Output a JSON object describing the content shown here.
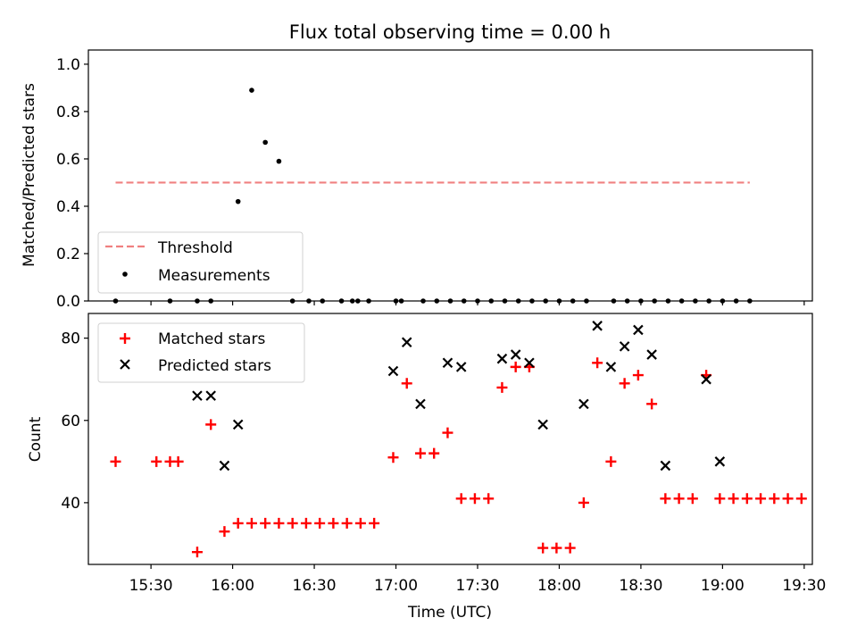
{
  "chart_data": [
    {
      "type": "scatter",
      "title": "Flux total observing time = 0.00 h",
      "xlabel": "",
      "ylabel": "Matched/Predicted stars",
      "xlim": [
        907,
        1173
      ],
      "ylim": [
        0,
        1.06
      ],
      "yticks": [
        0.0,
        0.2,
        0.4,
        0.6,
        0.8,
        1.0
      ],
      "ytick_labels": [
        "0.0",
        "0.2",
        "0.4",
        "0.6",
        "0.8",
        "1.0"
      ],
      "threshold": {
        "name": "Threshold",
        "value": 0.5,
        "x_range": [
          917,
          1150
        ],
        "color": "#f08080"
      },
      "legend": [
        "Threshold",
        "Measurements"
      ],
      "series": [
        {
          "name": "Measurements",
          "color": "#000000",
          "x": [
            917,
            937,
            947,
            952,
            962,
            967,
            972,
            977,
            982,
            988,
            993,
            1000,
            1004,
            1006,
            1010,
            1020,
            1022,
            1030,
            1035,
            1040,
            1045,
            1050,
            1055,
            1060,
            1065,
            1070,
            1075,
            1080,
            1085,
            1090,
            1100,
            1105,
            1110,
            1115,
            1120,
            1125,
            1130,
            1135,
            1140,
            1145,
            1150
          ],
          "y": [
            0.0,
            0.0,
            0.0,
            0.0,
            0.42,
            0.89,
            0.67,
            0.59,
            0.0,
            0.0,
            0.0,
            0.0,
            0.0,
            0.0,
            0.0,
            0.0,
            0.0,
            0.0,
            0.0,
            0.0,
            0.0,
            0.0,
            0.0,
            0.0,
            0.0,
            0.0,
            0.0,
            0.0,
            0.0,
            0.0,
            0.0,
            0.0,
            0.0,
            0.0,
            0.0,
            0.0,
            0.0,
            0.0,
            0.0,
            0.0,
            0.0
          ]
        }
      ]
    },
    {
      "type": "scatter",
      "title": "",
      "xlabel": "Time (UTC)",
      "ylabel": "Count",
      "xlim": [
        907,
        1173
      ],
      "ylim": [
        25,
        86
      ],
      "yticks": [
        40,
        60,
        80
      ],
      "ytick_labels": [
        "40",
        "60",
        "80"
      ],
      "xticks": [
        930,
        960,
        990,
        1020,
        1050,
        1080,
        1110,
        1140,
        1170
      ],
      "xtick_labels": [
        "15:30",
        "16:00",
        "16:30",
        "17:00",
        "17:30",
        "18:00",
        "18:30",
        "19:00",
        "19:30"
      ],
      "legend": [
        "Matched stars",
        "Predicted stars"
      ],
      "series": [
        {
          "name": "Matched stars",
          "color": "#ff0000",
          "x": [
            917,
            932,
            937,
            940,
            947,
            952,
            957,
            962,
            967,
            972,
            977,
            982,
            987,
            992,
            997,
            1002,
            1007,
            1012,
            1019,
            1024,
            1029,
            1034,
            1039,
            1044,
            1049,
            1054,
            1059,
            1064,
            1069,
            1074,
            1079,
            1084,
            1089,
            1094,
            1099,
            1104,
            1109,
            1114,
            1119,
            1124,
            1129,
            1134,
            1139,
            1144,
            1149,
            1154,
            1159,
            1164,
            1169
          ],
          "y": [
            50,
            50,
            50,
            50,
            28,
            59,
            33,
            35,
            35,
            35,
            35,
            35,
            35,
            35,
            35,
            35,
            35,
            35,
            51,
            69,
            52,
            52,
            57,
            41,
            41,
            41,
            68,
            73,
            73,
            29,
            29,
            29,
            40,
            74,
            50,
            69,
            71,
            64,
            41,
            41,
            41,
            71,
            41,
            41,
            41,
            41,
            41,
            41,
            41
          ]
        },
        {
          "name": "Predicted stars",
          "color": "#000000",
          "x": [
            947,
            952,
            957,
            962,
            1019,
            1024,
            1029,
            1039,
            1044,
            1059,
            1064,
            1069,
            1074,
            1089,
            1094,
            1099,
            1104,
            1109,
            1114,
            1119,
            1134,
            1139
          ],
          "y": [
            66,
            66,
            49,
            59,
            72,
            79,
            64,
            74,
            73,
            75,
            76,
            74,
            59,
            64,
            83,
            73,
            78,
            82,
            76,
            49,
            70,
            50
          ]
        }
      ]
    }
  ]
}
